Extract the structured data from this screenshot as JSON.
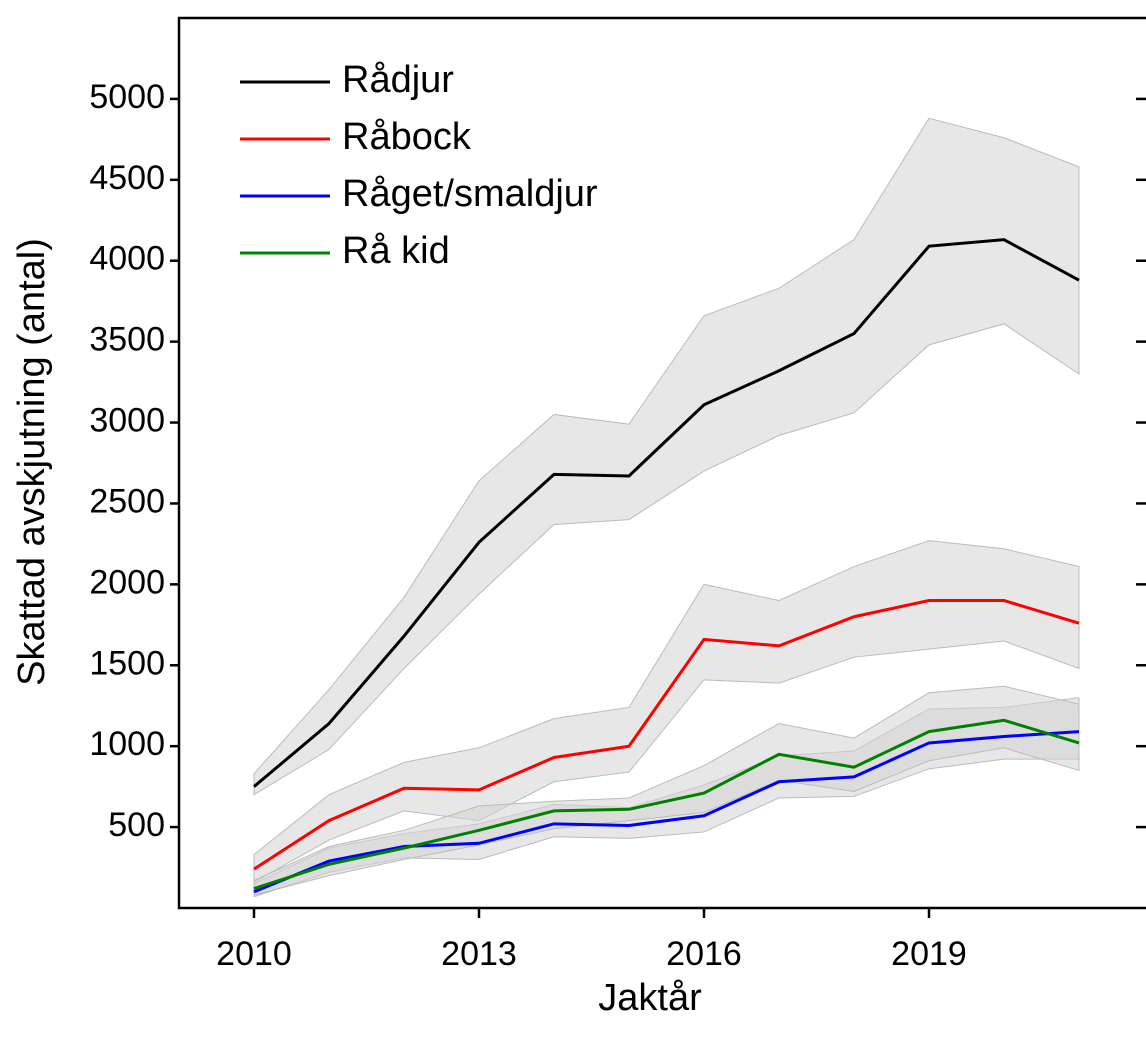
{
  "chart_data": {
    "type": "line",
    "x_label": "Jaktår",
    "y_label": "Skattad avskjutning (antal)",
    "x": [
      2010,
      2011,
      2012,
      2013,
      2014,
      2015,
      2016,
      2017,
      2018,
      2019,
      2020,
      2021
    ],
    "xlim": [
      2009,
      2022
    ],
    "xticks": [
      2010,
      2013,
      2016,
      2019
    ],
    "ylim": [
      0,
      5500
    ],
    "yticks": [
      500,
      1000,
      1500,
      2000,
      2500,
      3000,
      3500,
      4000,
      4500,
      5000
    ],
    "band_color": "#d3d3d3",
    "legend": "upper left",
    "series": [
      {
        "name": "Rådjur",
        "color": "#000000",
        "values": [
          750,
          1140,
          1680,
          2260,
          2680,
          2670,
          3110,
          3320,
          3550,
          4090,
          4130,
          3880
        ],
        "upper": [
          830,
          1350,
          1920,
          2640,
          3050,
          2990,
          3660,
          3830,
          4130,
          4880,
          4760,
          4580
        ],
        "lower": [
          700,
          980,
          1480,
          1940,
          2370,
          2400,
          2700,
          2920,
          3060,
          3480,
          3610,
          3300
        ]
      },
      {
        "name": "Råbock",
        "color": "#ff0000",
        "values": [
          240,
          540,
          740,
          730,
          930,
          1000,
          1660,
          1620,
          1800,
          1900,
          1900,
          1760
        ],
        "upper": [
          330,
          700,
          900,
          990,
          1170,
          1240,
          2000,
          1900,
          2110,
          2270,
          2220,
          2110
        ],
        "lower": [
          160,
          420,
          600,
          540,
          780,
          840,
          1410,
          1390,
          1550,
          1600,
          1650,
          1480
        ]
      },
      {
        "name": "Råget/smaldjur",
        "color": "#0000ff",
        "values": [
          100,
          290,
          380,
          400,
          520,
          510,
          570,
          780,
          810,
          1020,
          1060,
          1090
        ],
        "upper": [
          150,
          370,
          460,
          520,
          640,
          620,
          760,
          940,
          970,
          1230,
          1240,
          1300
        ],
        "lower": [
          70,
          220,
          310,
          300,
          440,
          430,
          470,
          680,
          690,
          860,
          920,
          920
        ]
      },
      {
        "name": "Rå kid",
        "color": "#008000",
        "values": [
          120,
          270,
          370,
          480,
          600,
          610,
          710,
          950,
          870,
          1090,
          1160,
          1020
        ],
        "upper": [
          170,
          380,
          480,
          630,
          660,
          680,
          880,
          1140,
          1050,
          1330,
          1370,
          1260
        ],
        "lower": [
          80,
          200,
          300,
          390,
          490,
          540,
          590,
          790,
          720,
          910,
          990,
          850
        ]
      }
    ]
  }
}
